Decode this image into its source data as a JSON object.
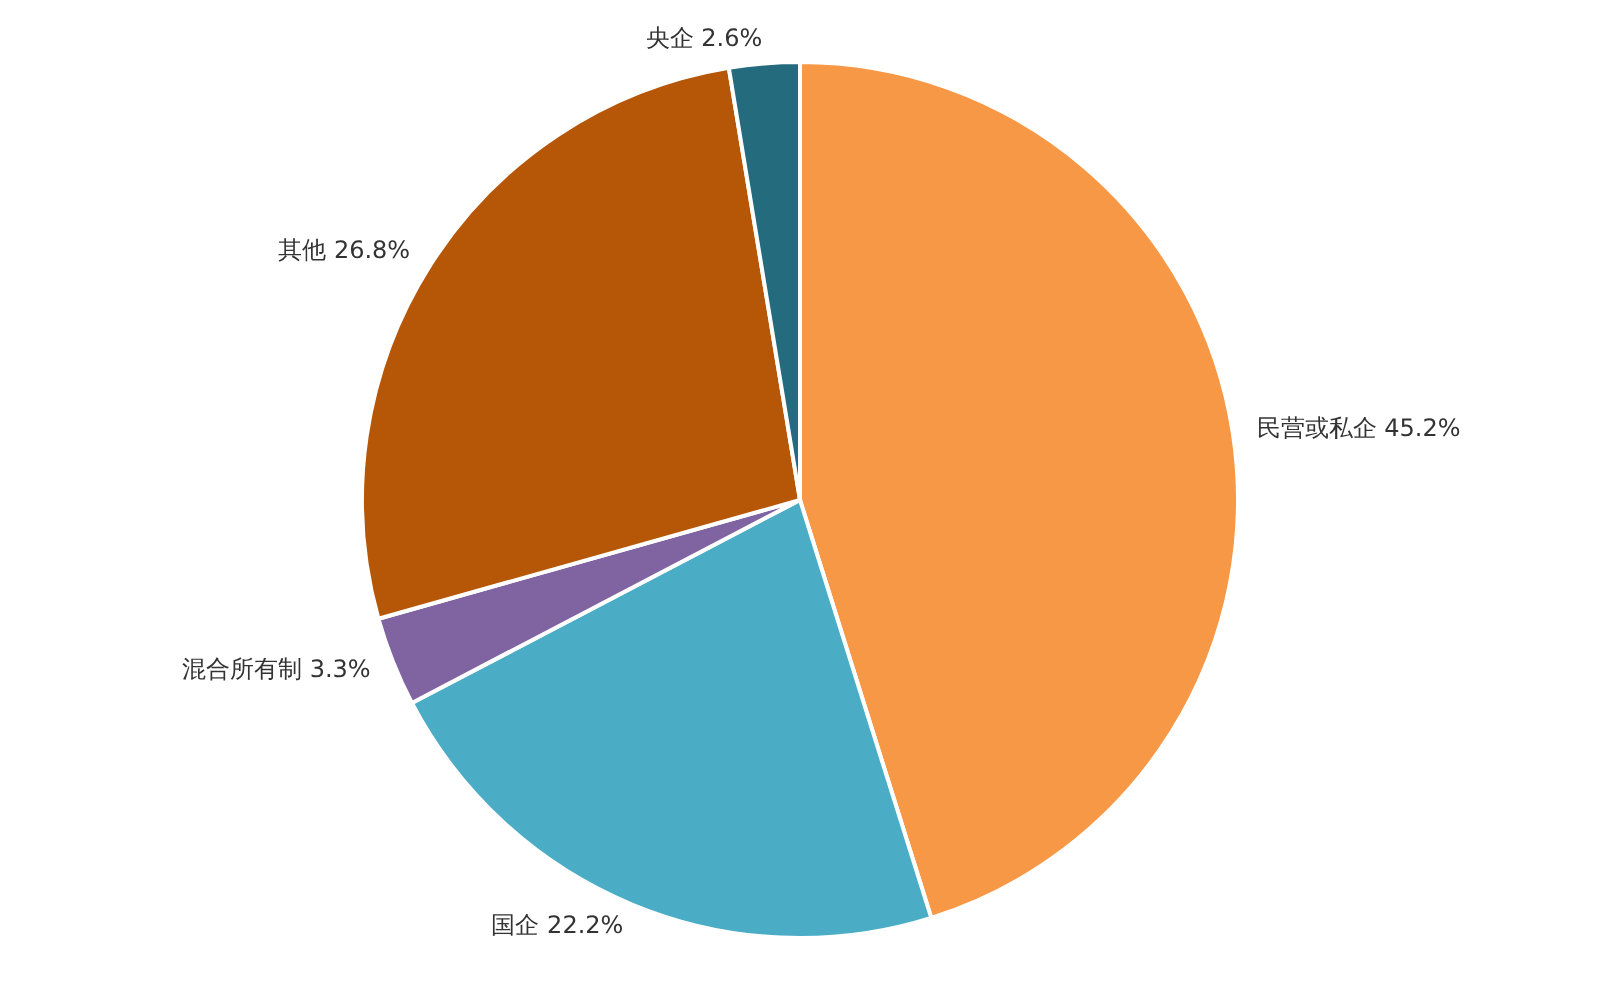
{
  "chart_data": {
    "type": "pie",
    "categories": [
      "民营或私企",
      "国企",
      "混合所有制",
      "其他",
      "央企"
    ],
    "values": [
      45.2,
      22.2,
      3.3,
      26.8,
      2.6
    ],
    "colors": [
      "#f79846",
      "#4bacc6",
      "#8064a2",
      "#b65708",
      "#246b7d"
    ],
    "value_labels": [
      "45.2%",
      "22.2%",
      "3.3%",
      "26.8%",
      "2.6%"
    ],
    "legend": false
  }
}
